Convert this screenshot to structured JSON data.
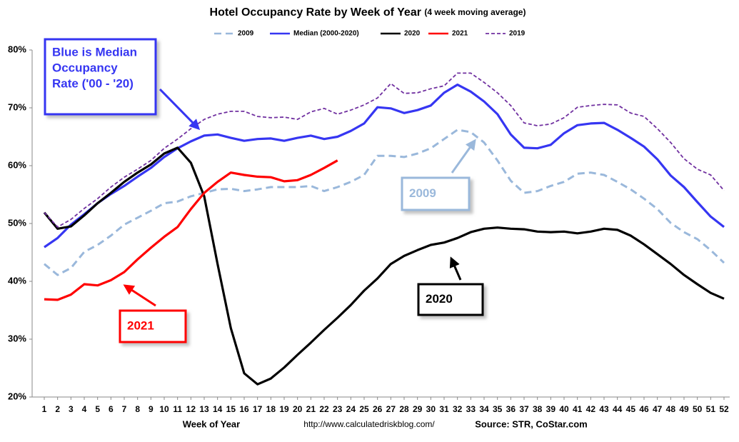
{
  "chart_data": {
    "type": "line",
    "title": "Hotel Occupancy Rate by  Week of Year",
    "subtitle": "(4 week moving average)",
    "x_label": "Week of Year",
    "source_url": "http://www.calculatedriskblog.com/",
    "source": "Source: STR, CoStar.com",
    "categories": [
      1,
      2,
      3,
      4,
      5,
      6,
      7,
      8,
      9,
      10,
      11,
      12,
      13,
      14,
      15,
      16,
      17,
      18,
      19,
      20,
      21,
      22,
      23,
      24,
      25,
      26,
      27,
      28,
      29,
      30,
      31,
      32,
      33,
      34,
      35,
      36,
      37,
      38,
      39,
      40,
      41,
      42,
      43,
      44,
      45,
      46,
      47,
      48,
      49,
      50,
      51,
      52
    ],
    "ylim": [
      20,
      80
    ],
    "yticks": [
      {
        "value": 20,
        "label": "20%"
      },
      {
        "value": 30,
        "label": "30%"
      },
      {
        "value": 40,
        "label": "40%"
      },
      {
        "value": 50,
        "label": "50%"
      },
      {
        "value": 60,
        "label": "60%"
      },
      {
        "value": 70,
        "label": "70%"
      },
      {
        "value": 80,
        "label": "80%"
      }
    ],
    "grid": false,
    "legend": "top",
    "series": [
      {
        "name": "2009",
        "color": "#9ab8db",
        "line_style": "dashed",
        "values": [
          43,
          41.1,
          42.3,
          45.1,
          46.3,
          47.9,
          49.8,
          51,
          52.2,
          53.5,
          53.8,
          54.7,
          55.3,
          55.9,
          56,
          55.6,
          55.9,
          56.3,
          56.3,
          56.3,
          56.5,
          55.6,
          56.3,
          57.2,
          58.4,
          61.7,
          61.7,
          61.5,
          62.1,
          63,
          64.6,
          66.2,
          65.8,
          64,
          60.9,
          57.4,
          55.3,
          55.6,
          56.5,
          57.2,
          58.6,
          58.8,
          58.4,
          57.2,
          55.9,
          54.3,
          52.5,
          50.1,
          48.5,
          47.3,
          45.4,
          43.2
        ]
      },
      {
        "name": "Median (2000-2020)",
        "color": "#3636f2",
        "line_style": "solid",
        "values": [
          45.9,
          47.5,
          49.8,
          51.6,
          53.5,
          55.1,
          56.5,
          58.1,
          59.6,
          61.5,
          63,
          64.2,
          65.2,
          65.4,
          64.8,
          64.3,
          64.6,
          64.7,
          64.3,
          64.8,
          65.2,
          64.6,
          65,
          66,
          67.3,
          70.1,
          69.9,
          69.1,
          69.6,
          70.4,
          72.6,
          74,
          72.8,
          71.1,
          68.9,
          65.4,
          63.1,
          63,
          63.6,
          65.6,
          67,
          67.3,
          67.4,
          66.2,
          64.8,
          63.3,
          61.1,
          58.3,
          56.3,
          53.7,
          51.2,
          49.4
        ]
      },
      {
        "name": "2020",
        "color": "#000000",
        "line_style": "solid",
        "values": [
          51.9,
          49.1,
          49.5,
          51.4,
          53.5,
          55.3,
          57.2,
          58.8,
          60.2,
          62.1,
          63.1,
          60.5,
          54.7,
          43,
          31.9,
          24.1,
          22.2,
          23.2,
          25.1,
          27.3,
          29.4,
          31.6,
          33.7,
          35.9,
          38.4,
          40.5,
          43,
          44.4,
          45.4,
          46.3,
          46.7,
          47.5,
          48.5,
          49.1,
          49.3,
          49.1,
          49,
          48.6,
          48.5,
          48.6,
          48.3,
          48.6,
          49.1,
          48.9,
          47.9,
          46.4,
          44.7,
          43,
          41.1,
          39.5,
          38,
          37
        ]
      },
      {
        "name": "2021",
        "color": "#ff0000",
        "line_style": "solid",
        "values": [
          36.9,
          36.8,
          37.7,
          39.5,
          39.3,
          40.2,
          41.6,
          43.8,
          45.8,
          47.7,
          49.4,
          52.5,
          55.3,
          57.2,
          58.8,
          58.4,
          58.1,
          58,
          57.3,
          57.5,
          58.4,
          59.6,
          60.9,
          null,
          null,
          null,
          null,
          null,
          null,
          null,
          null,
          null,
          null,
          null,
          null,
          null,
          null,
          null,
          null,
          null,
          null,
          null,
          null,
          null,
          null,
          null,
          null,
          null,
          null,
          null,
          null,
          null
        ]
      },
      {
        "name": "2019",
        "color": "#7030a0",
        "line_style": "dotted",
        "values": [
          51.9,
          49.4,
          50.7,
          52.6,
          54.3,
          56.3,
          58,
          59.4,
          60.9,
          63,
          64.6,
          66.4,
          68,
          68.9,
          69.4,
          69.4,
          68.5,
          68.3,
          68.4,
          68,
          69.3,
          69.9,
          68.9,
          69.6,
          70.5,
          71.7,
          74.2,
          72.5,
          72.6,
          73.3,
          73.8,
          76,
          76,
          74.4,
          72.6,
          70.4,
          67.4,
          66.9,
          67.2,
          68.3,
          70.1,
          70.4,
          70.6,
          70.5,
          69.1,
          68.5,
          66.4,
          64,
          61.2,
          59.4,
          58.4,
          55.7
        ]
      }
    ],
    "annotations": [
      {
        "lines": [
          "Blue is Median",
          "Occupancy",
          "Rate ('00 - '20)"
        ],
        "color": "#3636f2"
      },
      {
        "lines": [
          "2009"
        ],
        "color": "#9ab8db"
      },
      {
        "lines": [
          "2020"
        ],
        "color": "#000000"
      },
      {
        "lines": [
          "2021"
        ],
        "color": "#ff0000"
      }
    ]
  }
}
